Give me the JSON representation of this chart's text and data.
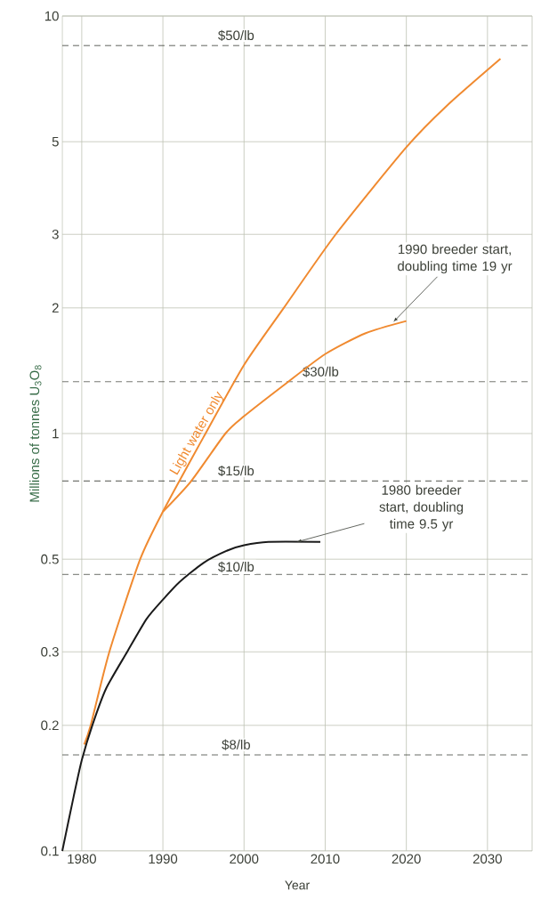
{
  "chart_data": {
    "type": "line",
    "xlabel": "Year",
    "ylabel": "Millions of tonnes U$_{3}$O$_{8}$",
    "xlim": [
      1977.6,
      2035.5
    ],
    "ylim": [
      0.1,
      10
    ],
    "log": "y",
    "grid": true,
    "marker": "none",
    "line_style": "solid",
    "xticks": [
      1980,
      1990,
      2000,
      2010,
      2020,
      2030
    ],
    "yticks": [
      0.1,
      0.2,
      0.3,
      0.5,
      1,
      2,
      3,
      5,
      10
    ],
    "series": [
      {
        "name": "Light water only",
        "color": "#f08a30",
        "x": [
          1980.3,
          1981.1,
          1983.4,
          1987.2,
          1990,
          1995,
          2000,
          2004.9,
          2011.3,
          2020,
          2025,
          2031.6
        ],
        "values": [
          0.18,
          0.2,
          0.3,
          0.5,
          0.65,
          0.98,
          1.46,
          2.0,
          3.0,
          4.85,
          6.1,
          7.9
        ]
      },
      {
        "color": "#f08a30",
        "x": [
          1990,
          1993.5,
          1997.7,
          2000,
          2005,
          2010,
          2015,
          2020
        ],
        "values": [
          0.65,
          0.77,
          1.0,
          1.1,
          1.31,
          1.55,
          1.74,
          1.86
        ]
      },
      {
        "color": "#1a1a1a",
        "x": [
          1977.6,
          1979,
          1980,
          1981.3,
          1983,
          1985.6,
          1988,
          1990,
          1992,
          1995,
          1998,
          2000,
          2003,
          2009.4
        ],
        "values": [
          0.1,
          0.135,
          0.165,
          0.2,
          0.245,
          0.3,
          0.36,
          0.4,
          0.44,
          0.49,
          0.525,
          0.54,
          0.55,
          0.55
        ]
      }
    ],
    "ref_lines": [
      {
        "axis": "y",
        "value": 8.5,
        "label": "$50/lb",
        "line_style": "dashed"
      },
      {
        "axis": "y",
        "value": 1.33,
        "label": "$30/lb",
        "line_style": "dashed"
      },
      {
        "axis": "y",
        "value": 0.77,
        "label": "$15/lb",
        "line_style": "dashed"
      },
      {
        "axis": "y",
        "value": 0.46,
        "label": "$10/lb",
        "line_style": "dashed"
      },
      {
        "axis": "y",
        "value": 0.17,
        "label": "$8/lb",
        "line_style": "dashed"
      }
    ],
    "annotations": [
      {
        "text": "1990 breeder start, doubling time 19 yr",
        "x": 2018.4,
        "y": 1.85
      },
      {
        "text": "1980 breeder start, doubling time 9.5 yr",
        "x": 2006.5,
        "y": 0.55
      }
    ]
  }
}
